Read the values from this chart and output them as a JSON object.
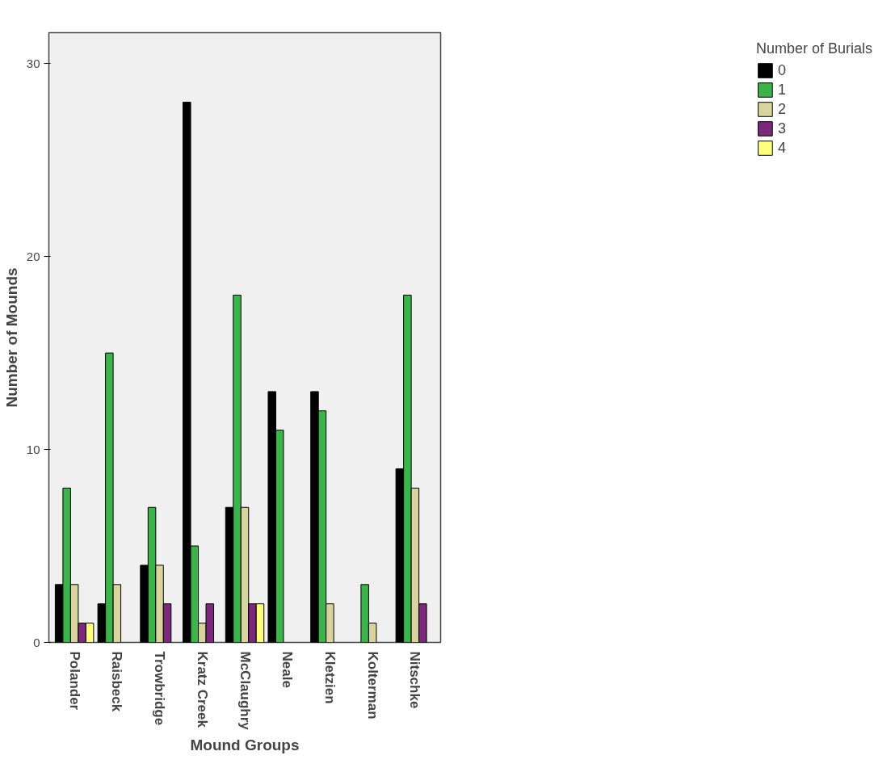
{
  "chart_data": {
    "type": "bar",
    "xlabel": "Mound Groups",
    "ylabel": "Number of Mounds",
    "legend_title": "Number of Burials",
    "legend": "right",
    "grid": false,
    "categories": [
      "Polander",
      "Raisbeck",
      "Trowbridge",
      "Kratz Creek",
      "McClaughry",
      "Neale",
      "Kletzien",
      "Kolterman",
      "Nitschke"
    ],
    "ylim": [
      0,
      31.6
    ],
    "yticks": [
      0,
      10,
      20,
      30
    ],
    "series": [
      {
        "name": "0",
        "color": "#000000",
        "values": [
          3,
          2,
          4,
          28,
          7,
          13,
          13,
          null,
          9
        ]
      },
      {
        "name": "1",
        "color": "#3cb44b",
        "values": [
          8,
          15,
          7,
          5,
          18,
          11,
          12,
          3,
          18
        ]
      },
      {
        "name": "2",
        "color": "#d9d3a0",
        "values": [
          3,
          3,
          4,
          1,
          7,
          null,
          2,
          1,
          8
        ]
      },
      {
        "name": "3",
        "color": "#7b2a7b",
        "values": [
          1,
          null,
          2,
          2,
          2,
          null,
          null,
          null,
          2
        ]
      },
      {
        "name": "4",
        "color": "#ffff80",
        "values": [
          1,
          null,
          null,
          null,
          2,
          null,
          null,
          null,
          null
        ]
      }
    ]
  }
}
